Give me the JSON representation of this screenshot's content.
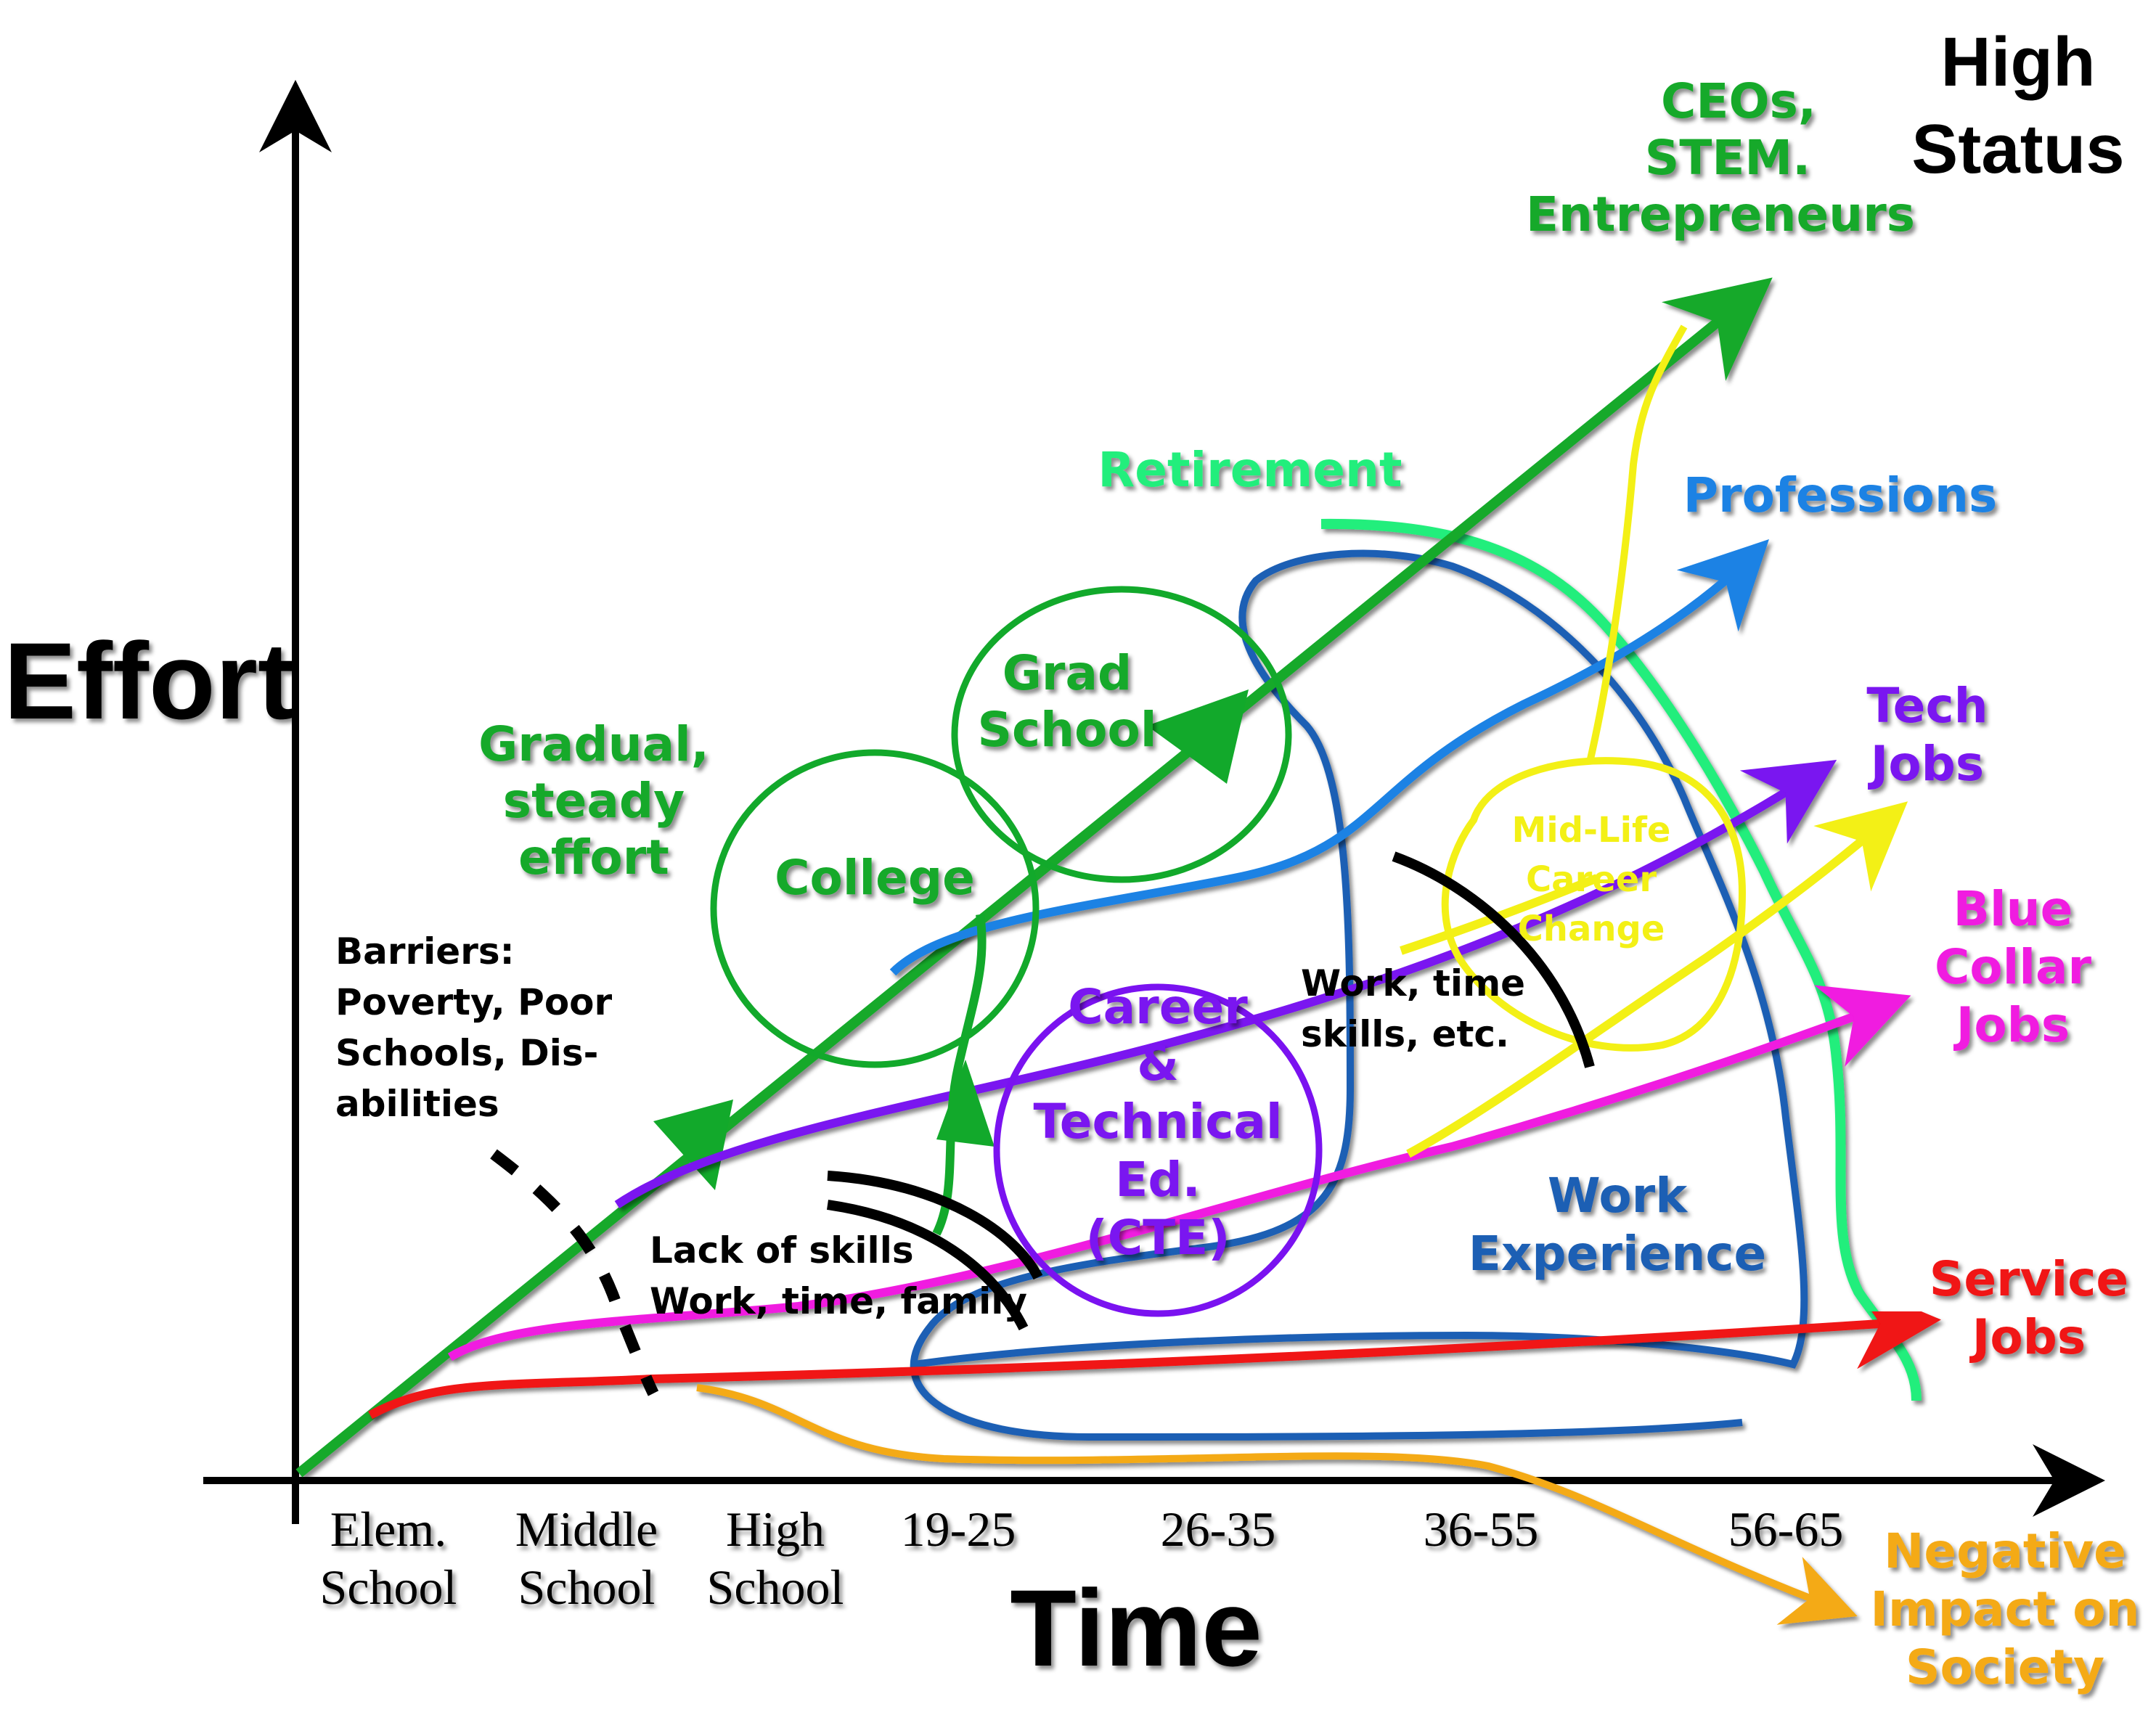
{
  "axes": {
    "y_title": "Effort",
    "x_title": "Time",
    "x_ticks": [
      [
        "Elem.",
        "School"
      ],
      [
        "Middle",
        "School"
      ],
      [
        "High",
        "School"
      ],
      [
        "19-25"
      ],
      [
        "26-35"
      ],
      [
        "36-55"
      ],
      [
        "56-65"
      ]
    ]
  },
  "labels": {
    "high_status": [
      "High",
      "Status"
    ],
    "ceos": [
      "CEOs,",
      "STEM.",
      "Entrepreneurs"
    ],
    "retirement": "Retirement",
    "professions": "Professions",
    "tech_jobs": [
      "Tech",
      "Jobs"
    ],
    "blue_collar": [
      "Blue",
      "Collar",
      "Jobs"
    ],
    "service_jobs": [
      "Service",
      "Jobs"
    ],
    "negative": [
      "Negative",
      "Impact on",
      "Society"
    ],
    "gradual": [
      "Gradual,",
      "steady",
      "effort"
    ],
    "grad_school": [
      "Grad",
      "School"
    ],
    "college": "College",
    "cte": [
      "Career",
      "&",
      "Technical",
      "Ed.",
      "(CTE)"
    ],
    "work_experience": [
      "Work",
      "Experience"
    ],
    "midlife": [
      "Mid-Life",
      "Career",
      "Change"
    ],
    "barriers": [
      "Barriers:",
      "Poverty, Poor",
      "Schools, Dis-",
      "abilities"
    ],
    "lack_skills": [
      "Lack of skills",
      "Work, time, family"
    ],
    "work_time_skills": [
      "Work, time",
      "skills, etc."
    ]
  },
  "colors": {
    "green": "#12a92b",
    "retirement": "#22ee7c",
    "blue": "#1b82e4",
    "navy": "#1c5eb4",
    "purple": "#7a12f0",
    "magenta": "#f01ae0",
    "red": "#f01212",
    "orange": "#f4aa16",
    "yellow": "#f3f016",
    "black": "#000000"
  }
}
